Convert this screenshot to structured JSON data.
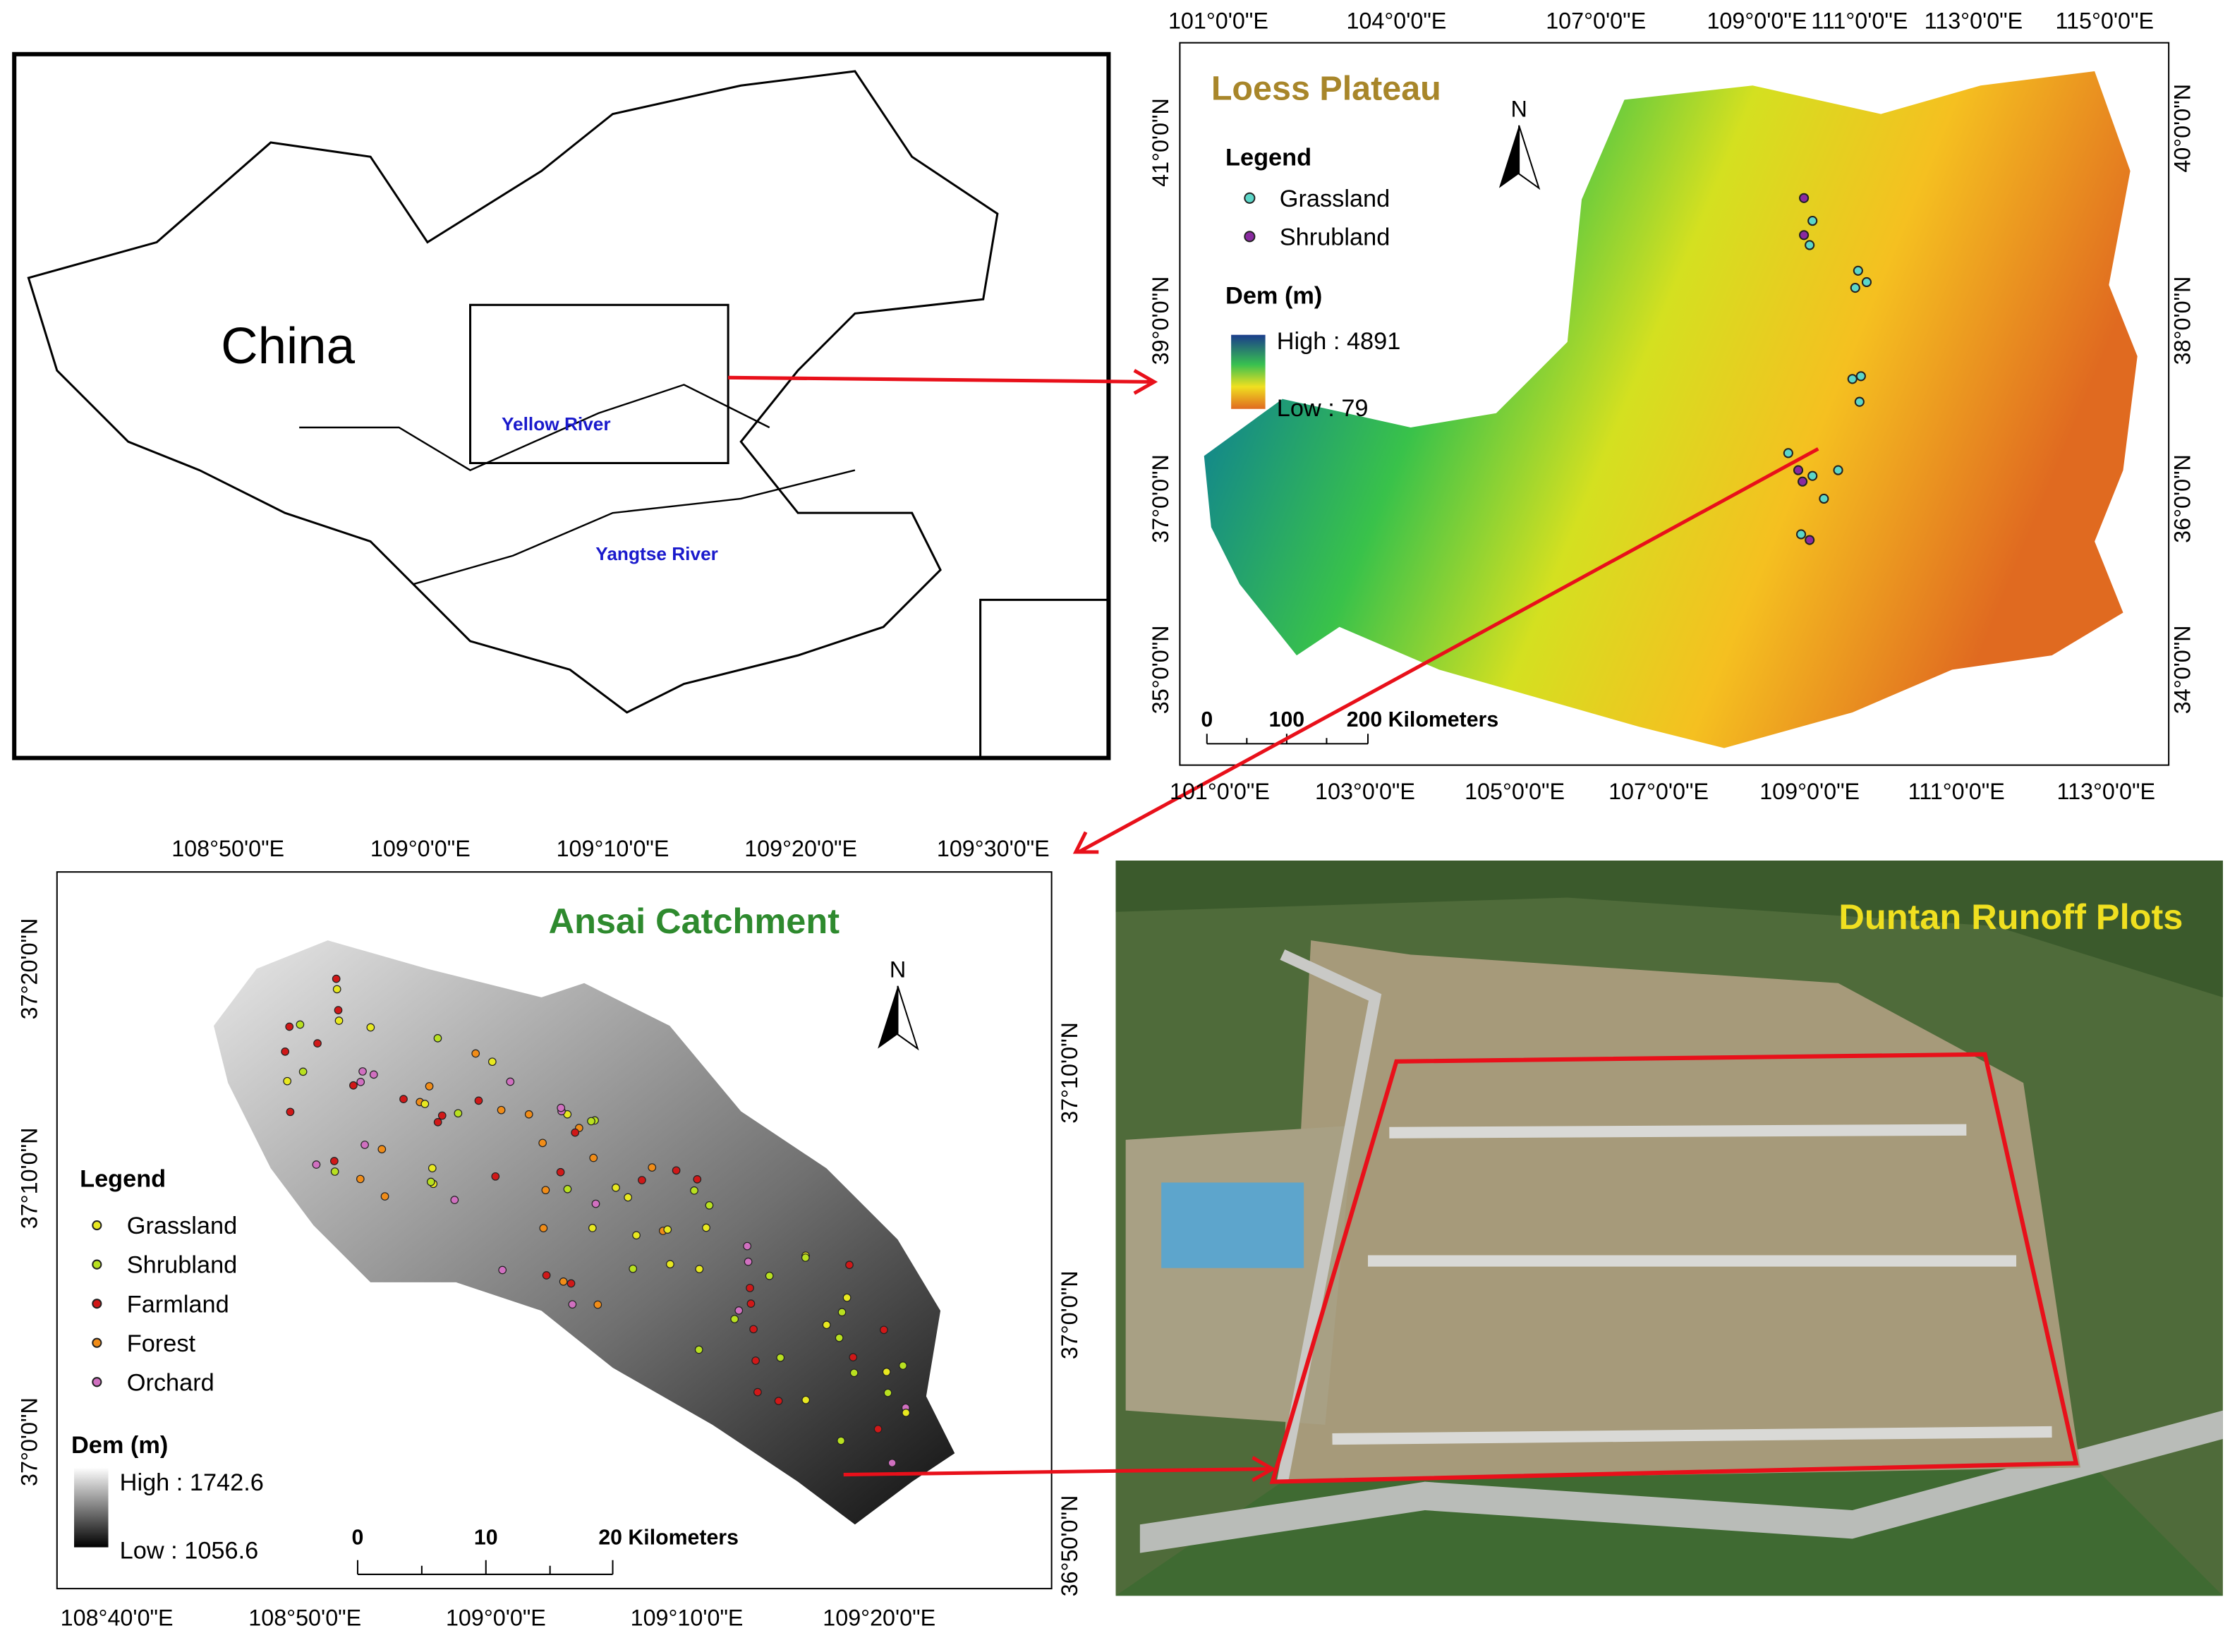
{
  "china_map": {
    "label": "China",
    "rivers": [
      "Yellow River",
      "Yangtse River"
    ]
  },
  "loess_plateau": {
    "title": "Loess Plateau",
    "north": "N",
    "legend": {
      "title": "Legend",
      "items": [
        "Grassland",
        "Shrubland"
      ]
    },
    "dem": {
      "title": "Dem (m)",
      "high": "High : 4891",
      "low": "Low : 79"
    },
    "scale": [
      "0",
      "100",
      "200 Kilometers"
    ],
    "top_ticks": [
      "101°0'0\"E",
      "104°0'0\"E",
      "107°0'0\"E",
      "109°0'0\"E",
      "111°0'0\"E",
      "113°0'0\"E",
      "115°0'0\"E"
    ],
    "bottom_ticks": [
      "101°0'0\"E",
      "103°0'0\"E",
      "105°0'0\"E",
      "107°0'0\"E",
      "109°0'0\"E",
      "111°0'0\"E",
      "113°0'0\"E"
    ],
    "left_ticks": [
      "41°0'0\"N",
      "39°0'0\"N",
      "37°0'0\"N",
      "35°0'0\"N"
    ],
    "right_ticks": [
      "40°0'0\"N",
      "38°0'0\"N",
      "36°0'0\"N",
      "34°0'0\"N"
    ]
  },
  "ansai_catchment": {
    "title": "Ansai Catchment",
    "north": "N",
    "legend": {
      "title": "Legend",
      "items": [
        "Grassland",
        "Shrubland",
        "Farmland",
        "Forest",
        "Orchard"
      ]
    },
    "dem": {
      "title": "Dem (m)",
      "high": "High : 1742.6",
      "low": "Low : 1056.6"
    },
    "scale": [
      "0",
      "10",
      "20 Kilometers"
    ],
    "top_ticks": [
      "108°50'0\"E",
      "109°0'0\"E",
      "109°10'0\"E",
      "109°20'0\"E",
      "109°30'0\"E"
    ],
    "bottom_ticks": [
      "108°40'0\"E",
      "108°50'0\"E",
      "109°0'0\"E",
      "109°10'0\"E",
      "109°20'0\"E"
    ],
    "left_ticks": [
      "37°20'0\"N",
      "37°10'0\"N",
      "37°0'0\"N"
    ],
    "right_ticks": [
      "37°10'0\"N",
      "37°0'0\"N",
      "36°50'0\"N"
    ]
  },
  "duntan": {
    "title": "Duntan Runoff Plots"
  }
}
